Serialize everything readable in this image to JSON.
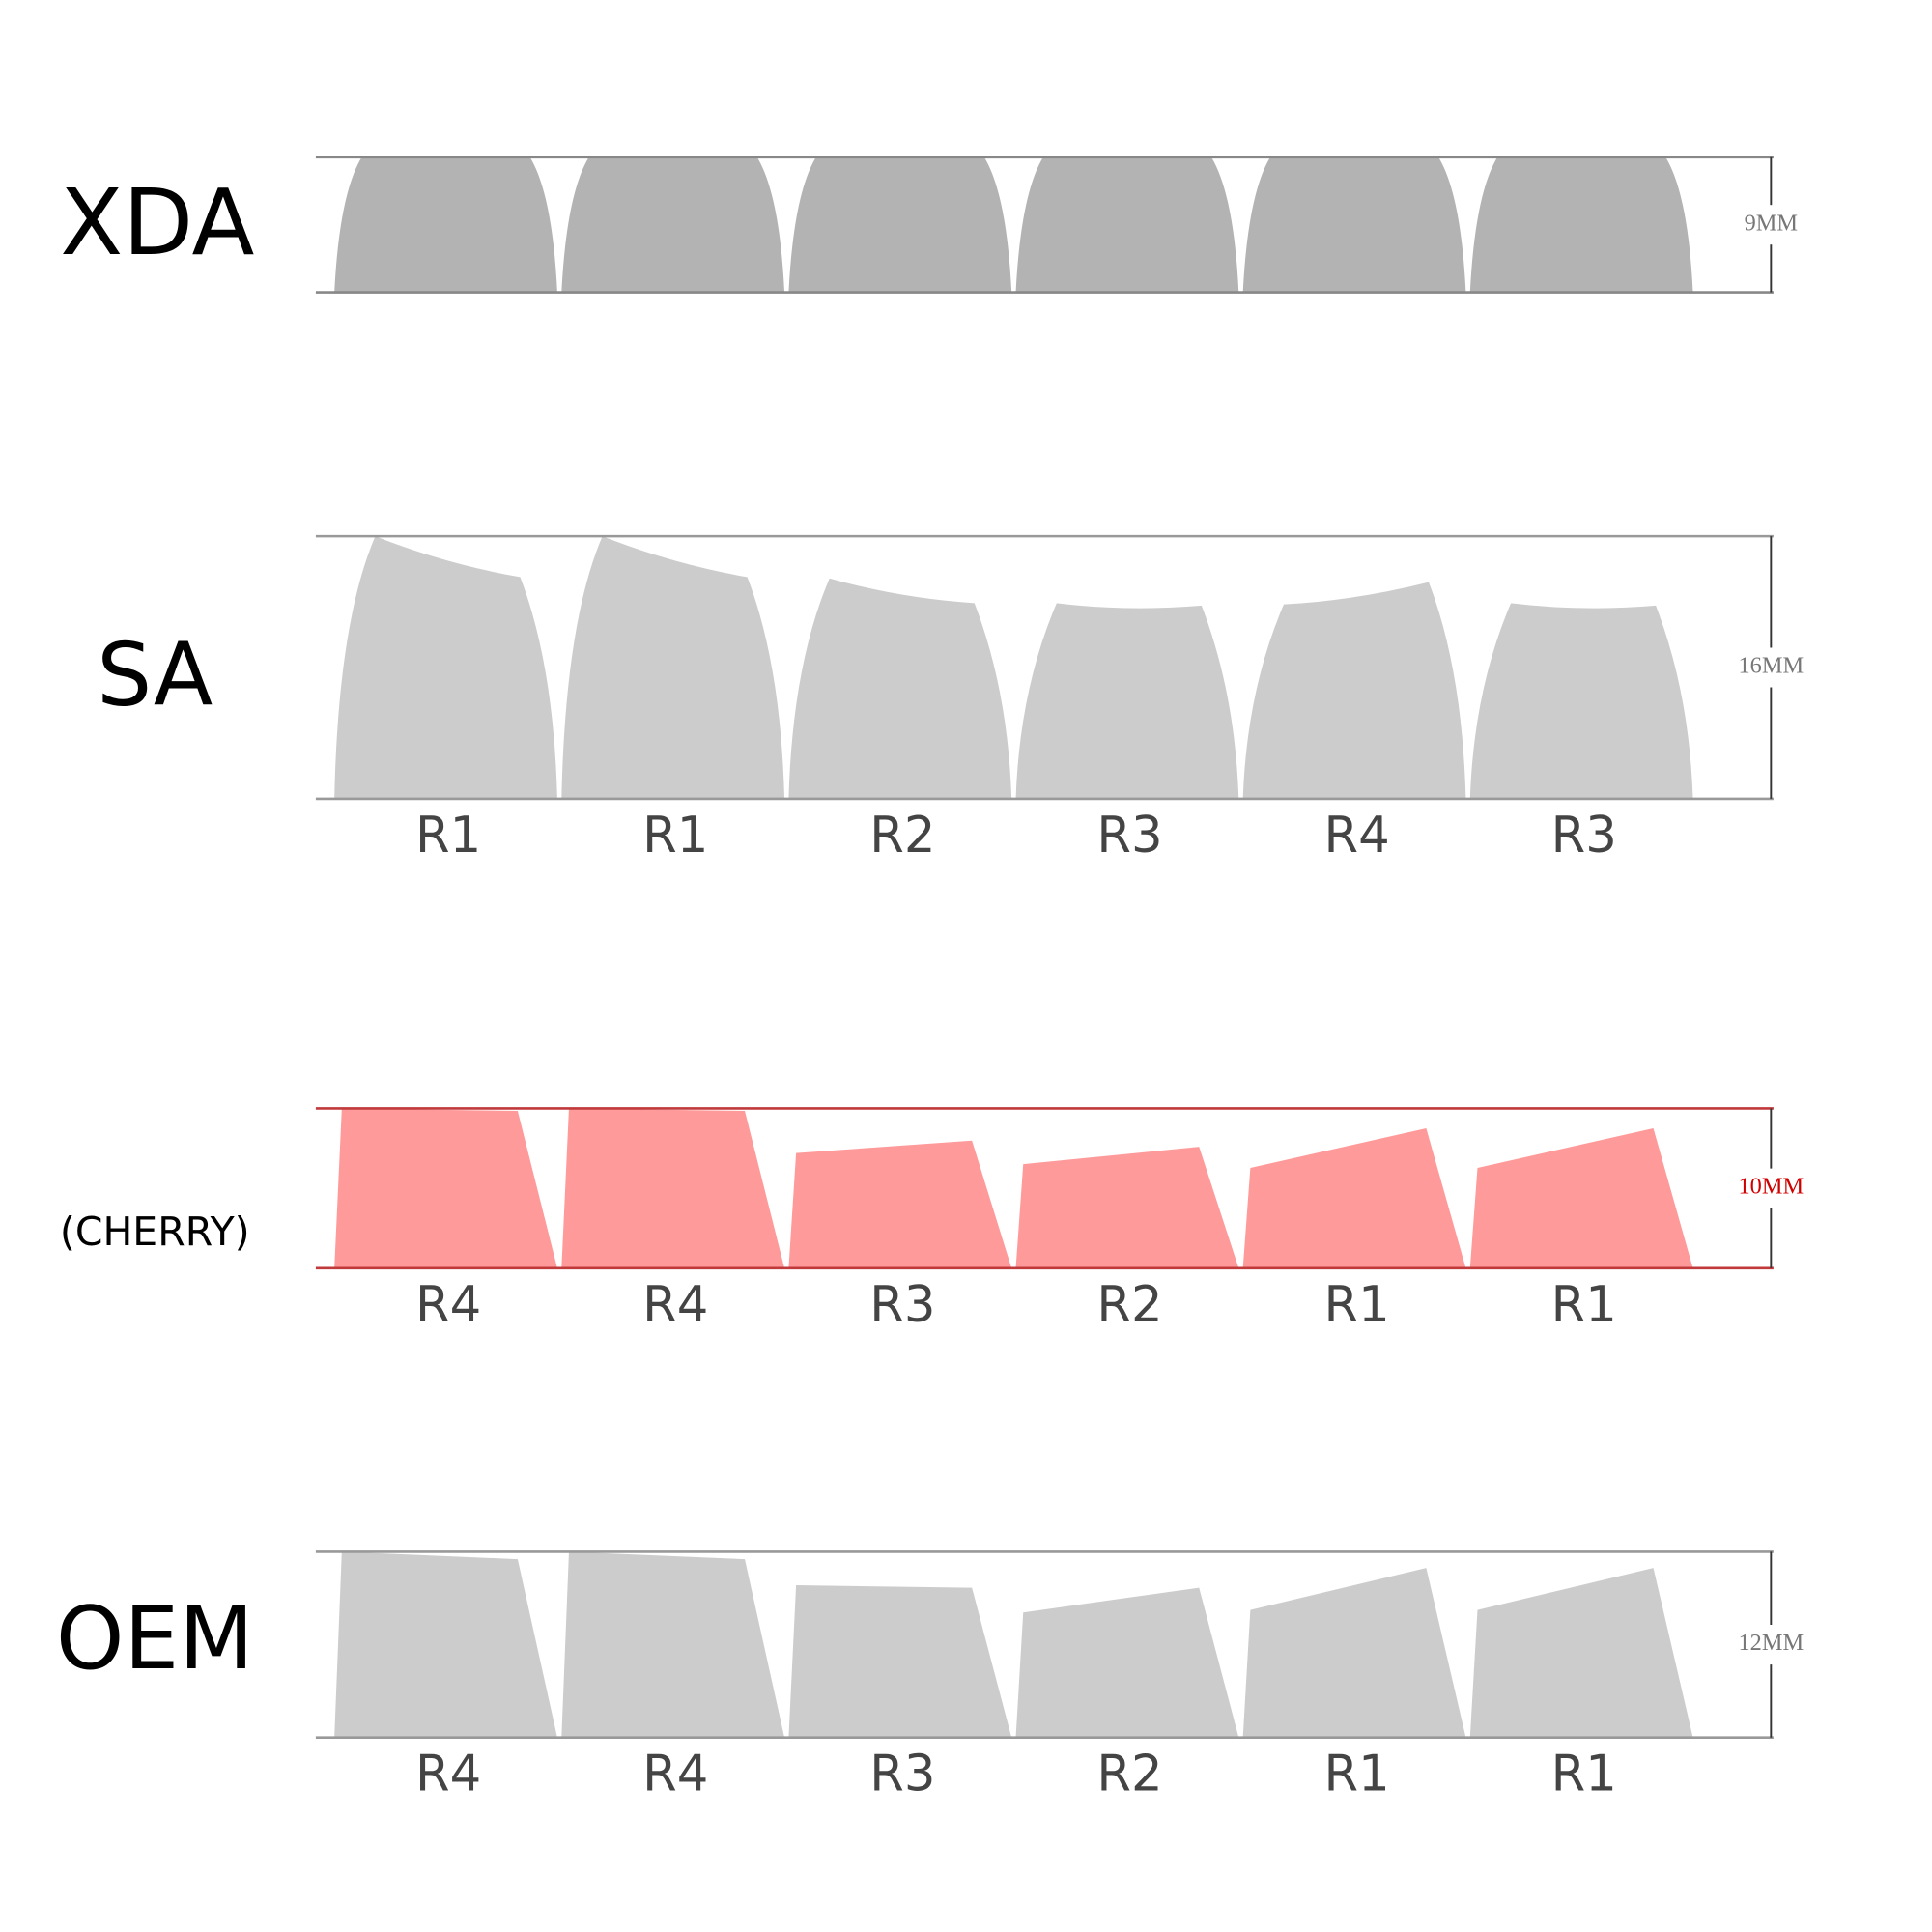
{
  "profiles": [
    {
      "name": "XDA",
      "height": "9MM"
    },
    {
      "name": "SA",
      "height": "16MM",
      "rows": [
        "R1",
        "R1",
        "R2",
        "R3",
        "R4",
        "R3"
      ]
    },
    {
      "name": "(CHERRY)",
      "height": "10MM",
      "rows": [
        "R4",
        "R4",
        "R3",
        "R2",
        "R1",
        "R1"
      ]
    },
    {
      "name": "OEM",
      "height": "12MM",
      "rows": [
        "R4",
        "R4",
        "R3",
        "R2",
        "R1",
        "R1"
      ]
    }
  ]
}
